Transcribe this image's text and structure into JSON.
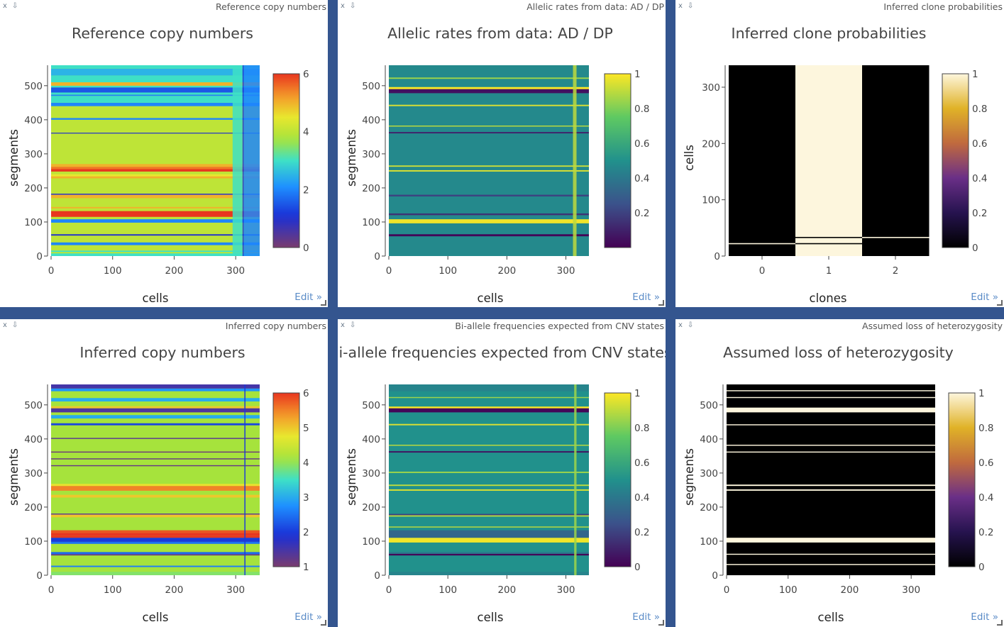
{
  "panels": [
    {
      "id": "p1",
      "header": "Reference copy numbers",
      "edit_label": "Edit »",
      "chart_data": {
        "type": "heatmap",
        "title": "Reference copy numbers",
        "xlabel": "cells",
        "ylabel": "segments",
        "xlim": [
          0,
          339
        ],
        "ylim": [
          0,
          560
        ],
        "xticks": [
          "0",
          "100",
          "200",
          "300"
        ],
        "yticks": [
          "0",
          "100",
          "200",
          "300",
          "400",
          "500"
        ],
        "colorscale": "jet",
        "zlim": [
          0,
          6
        ],
        "colorbar_ticks": [
          "0",
          "2",
          "4",
          "6"
        ],
        "base_value": 4,
        "row_bands": [
          {
            "y": [
              0,
              8
            ],
            "value": 3
          },
          {
            "y": [
              8,
              12
            ],
            "value": 4
          },
          {
            "y": [
              12,
              16
            ],
            "value": 3
          },
          {
            "y": [
              32,
              40
            ],
            "value": 2
          },
          {
            "y": [
              60,
              64
            ],
            "value": 1
          },
          {
            "y": [
              98,
              108
            ],
            "value": 2
          },
          {
            "y": [
              115,
              132
            ],
            "value": 6
          },
          {
            "y": [
              140,
              144
            ],
            "value": 5
          },
          {
            "y": [
              170,
              180
            ],
            "value": 5
          },
          {
            "y": [
              180,
              183
            ],
            "value": 1
          },
          {
            "y": [
              228,
              234
            ],
            "value": 5
          },
          {
            "y": [
              234,
              240
            ],
            "value": 4.5
          },
          {
            "y": [
              248,
              255
            ],
            "value": 6
          },
          {
            "y": [
              255,
              262
            ],
            "value": 5.5
          },
          {
            "y": [
              262,
              270
            ],
            "value": 5
          },
          {
            "y": [
              360,
              362
            ],
            "value": 1
          },
          {
            "y": [
              400,
              405
            ],
            "value": 2
          },
          {
            "y": [
              440,
              450
            ],
            "value": 2
          },
          {
            "y": [
              450,
              470
            ],
            "value": 3
          },
          {
            "y": [
              470,
              474
            ],
            "value": 2
          },
          {
            "y": [
              474,
              492
            ],
            "value": 3
          },
          {
            "y": [
              480,
              495
            ],
            "value": 1.5
          },
          {
            "y": [
              495,
              500
            ],
            "value": 3
          },
          {
            "y": [
              500,
              510
            ],
            "value": 5
          },
          {
            "y": [
              510,
              530
            ],
            "value": 3
          },
          {
            "y": [
              530,
              550
            ],
            "value": 2.5
          },
          {
            "y": [
              550,
              560
            ],
            "value": 3
          }
        ],
        "column_bands": [
          {
            "x": [
              311,
              313
            ],
            "value": 1
          },
          {
            "x": [
              313,
              339
            ],
            "value": 2
          },
          {
            "x": [
              295,
              311
            ],
            "value": 3
          }
        ]
      }
    },
    {
      "id": "p2",
      "header": "Allelic rates from data: AD / DP",
      "edit_label": "Edit »",
      "chart_data": {
        "type": "heatmap",
        "title": "Allelic rates from data: AD / DP",
        "xlabel": "cells",
        "ylabel": "segments",
        "xlim": [
          0,
          339
        ],
        "ylim": [
          0,
          560
        ],
        "xticks": [
          "0",
          "100",
          "200",
          "300"
        ],
        "yticks": [
          "0",
          "100",
          "200",
          "300",
          "400",
          "500"
        ],
        "colorscale": "viridis",
        "zlim": [
          0,
          1
        ],
        "colorbar_ticks": [
          "0.2",
          "0.4",
          "0.6",
          "0.8",
          "1"
        ],
        "base_value": 0.47,
        "row_bands": [
          {
            "y": [
              58,
              64
            ],
            "value": 0.02
          },
          {
            "y": [
              96,
              108
            ],
            "value": 0.98
          },
          {
            "y": [
              120,
              125
            ],
            "value": 0.15
          },
          {
            "y": [
              175,
              180
            ],
            "value": 0.2
          },
          {
            "y": [
              248,
              252
            ],
            "value": 0.95
          },
          {
            "y": [
              262,
              266
            ],
            "value": 0.92
          },
          {
            "y": [
              360,
              364
            ],
            "value": 0.1
          },
          {
            "y": [
              380,
              383
            ],
            "value": 0.9
          },
          {
            "y": [
              440,
              444
            ],
            "value": 0.95
          },
          {
            "y": [
              478,
              490
            ],
            "value": 0.05
          },
          {
            "y": [
              490,
              496
            ],
            "value": 1.0
          },
          {
            "y": [
              520,
              524
            ],
            "value": 0.85
          }
        ],
        "column_bands": [
          {
            "x": [
              312,
              318
            ],
            "value": 0.9
          }
        ]
      }
    },
    {
      "id": "p3",
      "header": "Inferred clone probabilities",
      "edit_label": "Edit »",
      "chart_data": {
        "type": "heatmap",
        "title": "Inferred clone probabilities",
        "xlabel": "clones",
        "ylabel": "cells",
        "xlim": [
          -0.5,
          2.5
        ],
        "ylim": [
          0,
          339
        ],
        "xticks": [
          "0",
          "1",
          "2"
        ],
        "yticks": [
          "0",
          "100",
          "200",
          "300"
        ],
        "colorscale": "cividis_dark",
        "zlim": [
          0,
          1
        ],
        "colorbar_ticks": [
          "0",
          "0.2",
          "0.4",
          "0.6",
          "0.8",
          "1"
        ],
        "columns": [
          0,
          1,
          0
        ],
        "cell_exceptions": [
          {
            "clone": 0,
            "y": [
              21,
              23
            ],
            "value": 1
          },
          {
            "clone": 1,
            "y": [
              21,
              23
            ],
            "value": 0
          },
          {
            "clone": 1,
            "y": [
              32,
              34
            ],
            "value": 0
          },
          {
            "clone": 2,
            "y": [
              32,
              34
            ],
            "value": 1
          }
        ]
      }
    },
    {
      "id": "p4",
      "header": "Inferred copy numbers",
      "edit_label": "Edit »",
      "chart_data": {
        "type": "heatmap",
        "title": "Inferred copy numbers",
        "xlabel": "cells",
        "ylabel": "segments",
        "xlim": [
          0,
          339
        ],
        "ylim": [
          0,
          560
        ],
        "xticks": [
          "0",
          "100",
          "200",
          "300"
        ],
        "yticks": [
          "0",
          "100",
          "200",
          "300",
          "400",
          "500"
        ],
        "colorscale": "jet",
        "zlim": [
          1,
          6
        ],
        "colorbar_ticks": [
          "1",
          "2",
          "3",
          "4",
          "5",
          "6"
        ],
        "base_value": 4.1,
        "row_bands": [
          {
            "y": [
              0,
              10
            ],
            "value": 3.9
          },
          {
            "y": [
              24,
              28
            ],
            "value": 2.6
          },
          {
            "y": [
              58,
              62
            ],
            "value": 1.2
          },
          {
            "y": [
              62,
              68
            ],
            "value": 2.4
          },
          {
            "y": [
              92,
              98
            ],
            "value": 2.5
          },
          {
            "y": [
              98,
              110
            ],
            "value": 2.0
          },
          {
            "y": [
              110,
              116
            ],
            "value": 6.0
          },
          {
            "y": [
              116,
              124
            ],
            "value": 6.0
          },
          {
            "y": [
              124,
              132
            ],
            "value": 5.8
          },
          {
            "y": [
              170,
              178
            ],
            "value": 5.0
          },
          {
            "y": [
              178,
              181
            ],
            "value": 1.3
          },
          {
            "y": [
              228,
              236
            ],
            "value": 5.0
          },
          {
            "y": [
              248,
              262
            ],
            "value": 5.5
          },
          {
            "y": [
              262,
              268
            ],
            "value": 4.8
          },
          {
            "y": [
              320,
              323
            ],
            "value": 1.2
          },
          {
            "y": [
              340,
              343
            ],
            "value": 1.2
          },
          {
            "y": [
              360,
              363
            ],
            "value": 1.1
          },
          {
            "y": [
              400,
              403
            ],
            "value": 1.3
          },
          {
            "y": [
              440,
              446
            ],
            "value": 2.1
          },
          {
            "y": [
              460,
              470
            ],
            "value": 3.0
          },
          {
            "y": [
              478,
              490
            ],
            "value": 1.4
          },
          {
            "y": [
              490,
              496
            ],
            "value": 5.0
          },
          {
            "y": [
              510,
              520
            ],
            "value": 3.0
          },
          {
            "y": [
              540,
              548
            ],
            "value": 2.8
          },
          {
            "y": [
              548,
              560
            ],
            "value": 1.5
          }
        ],
        "column_bands": [
          {
            "x": [
              314,
              316
            ],
            "value": 2.0
          }
        ]
      }
    },
    {
      "id": "p5",
      "header": "Bi-allele frequencies expected from CNV states",
      "edit_label": "Edit »",
      "chart_data": {
        "type": "heatmap",
        "title": "Bi-allele frequencies expected from CNV states",
        "xlabel": "cells",
        "ylabel": "segments",
        "xlim": [
          0,
          339
        ],
        "ylim": [
          0,
          560
        ],
        "xticks": [
          "0",
          "100",
          "200",
          "300"
        ],
        "yticks": [
          "0",
          "100",
          "200",
          "300",
          "400",
          "500"
        ],
        "colorscale": "viridis",
        "zlim": [
          0,
          1
        ],
        "colorbar_ticks": [
          "0",
          "0.2",
          "0.4",
          "0.6",
          "0.8",
          "1"
        ],
        "base_value": 0.5,
        "row_bands": [
          {
            "y": [
              0,
              10
            ],
            "value": 0.45
          },
          {
            "y": [
              58,
              63
            ],
            "value": 0.02
          },
          {
            "y": [
              63,
              68
            ],
            "value": 0.4
          },
          {
            "y": [
              96,
              110
            ],
            "value": 0.98
          },
          {
            "y": [
              110,
              132
            ],
            "value": 0.33
          },
          {
            "y": [
              140,
              143
            ],
            "value": 0.9
          },
          {
            "y": [
              172,
              176
            ],
            "value": 0.9
          },
          {
            "y": [
              176,
              180
            ],
            "value": 0.2
          },
          {
            "y": [
              248,
              252
            ],
            "value": 0.95
          },
          {
            "y": [
              262,
              266
            ],
            "value": 0.9
          },
          {
            "y": [
              300,
              304
            ],
            "value": 0.85
          },
          {
            "y": [
              360,
              364
            ],
            "value": 0.05
          },
          {
            "y": [
              380,
              383
            ],
            "value": 0.9
          },
          {
            "y": [
              440,
              444
            ],
            "value": 0.95
          },
          {
            "y": [
              478,
              490
            ],
            "value": 0.02
          },
          {
            "y": [
              490,
              495
            ],
            "value": 1.0
          },
          {
            "y": [
              520,
              523
            ],
            "value": 0.85
          },
          {
            "y": [
              540,
              560
            ],
            "value": 0.45
          }
        ],
        "column_bands": [
          {
            "x": [
              314,
              318
            ],
            "value": 0.85
          }
        ]
      }
    },
    {
      "id": "p6",
      "header": "Assumed loss of heterozygosity",
      "edit_label": "Edit »",
      "chart_data": {
        "type": "heatmap",
        "title": "Assumed loss of heterozygosity",
        "xlabel": "cells",
        "ylabel": "segments",
        "xlim": [
          0,
          339
        ],
        "ylim": [
          0,
          560
        ],
        "xticks": [
          "0",
          "100",
          "200",
          "300"
        ],
        "yticks": [
          "0",
          "100",
          "200",
          "300",
          "400",
          "500"
        ],
        "colorscale": "cividis_dark",
        "zlim": [
          0,
          1
        ],
        "colorbar_ticks": [
          "0",
          "0.2",
          "0.4",
          "0.6",
          "0.8",
          "1"
        ],
        "base_value": 0,
        "row_bands": [
          {
            "y": [
              30,
              33
            ],
            "value": 1
          },
          {
            "y": [
              60,
              63
            ],
            "value": 1
          },
          {
            "y": [
              96,
              110
            ],
            "value": 1
          },
          {
            "y": [
              248,
              252
            ],
            "value": 1
          },
          {
            "y": [
              262,
              266
            ],
            "value": 1
          },
          {
            "y": [
              360,
              363
            ],
            "value": 1
          },
          {
            "y": [
              380,
              383
            ],
            "value": 1
          },
          {
            "y": [
              440,
              443
            ],
            "value": 1
          },
          {
            "y": [
              478,
              492
            ],
            "value": 1
          },
          {
            "y": [
              520,
              523
            ],
            "value": 1
          },
          {
            "y": [
              540,
              543
            ],
            "value": 1
          }
        ],
        "column_bands": []
      }
    }
  ]
}
